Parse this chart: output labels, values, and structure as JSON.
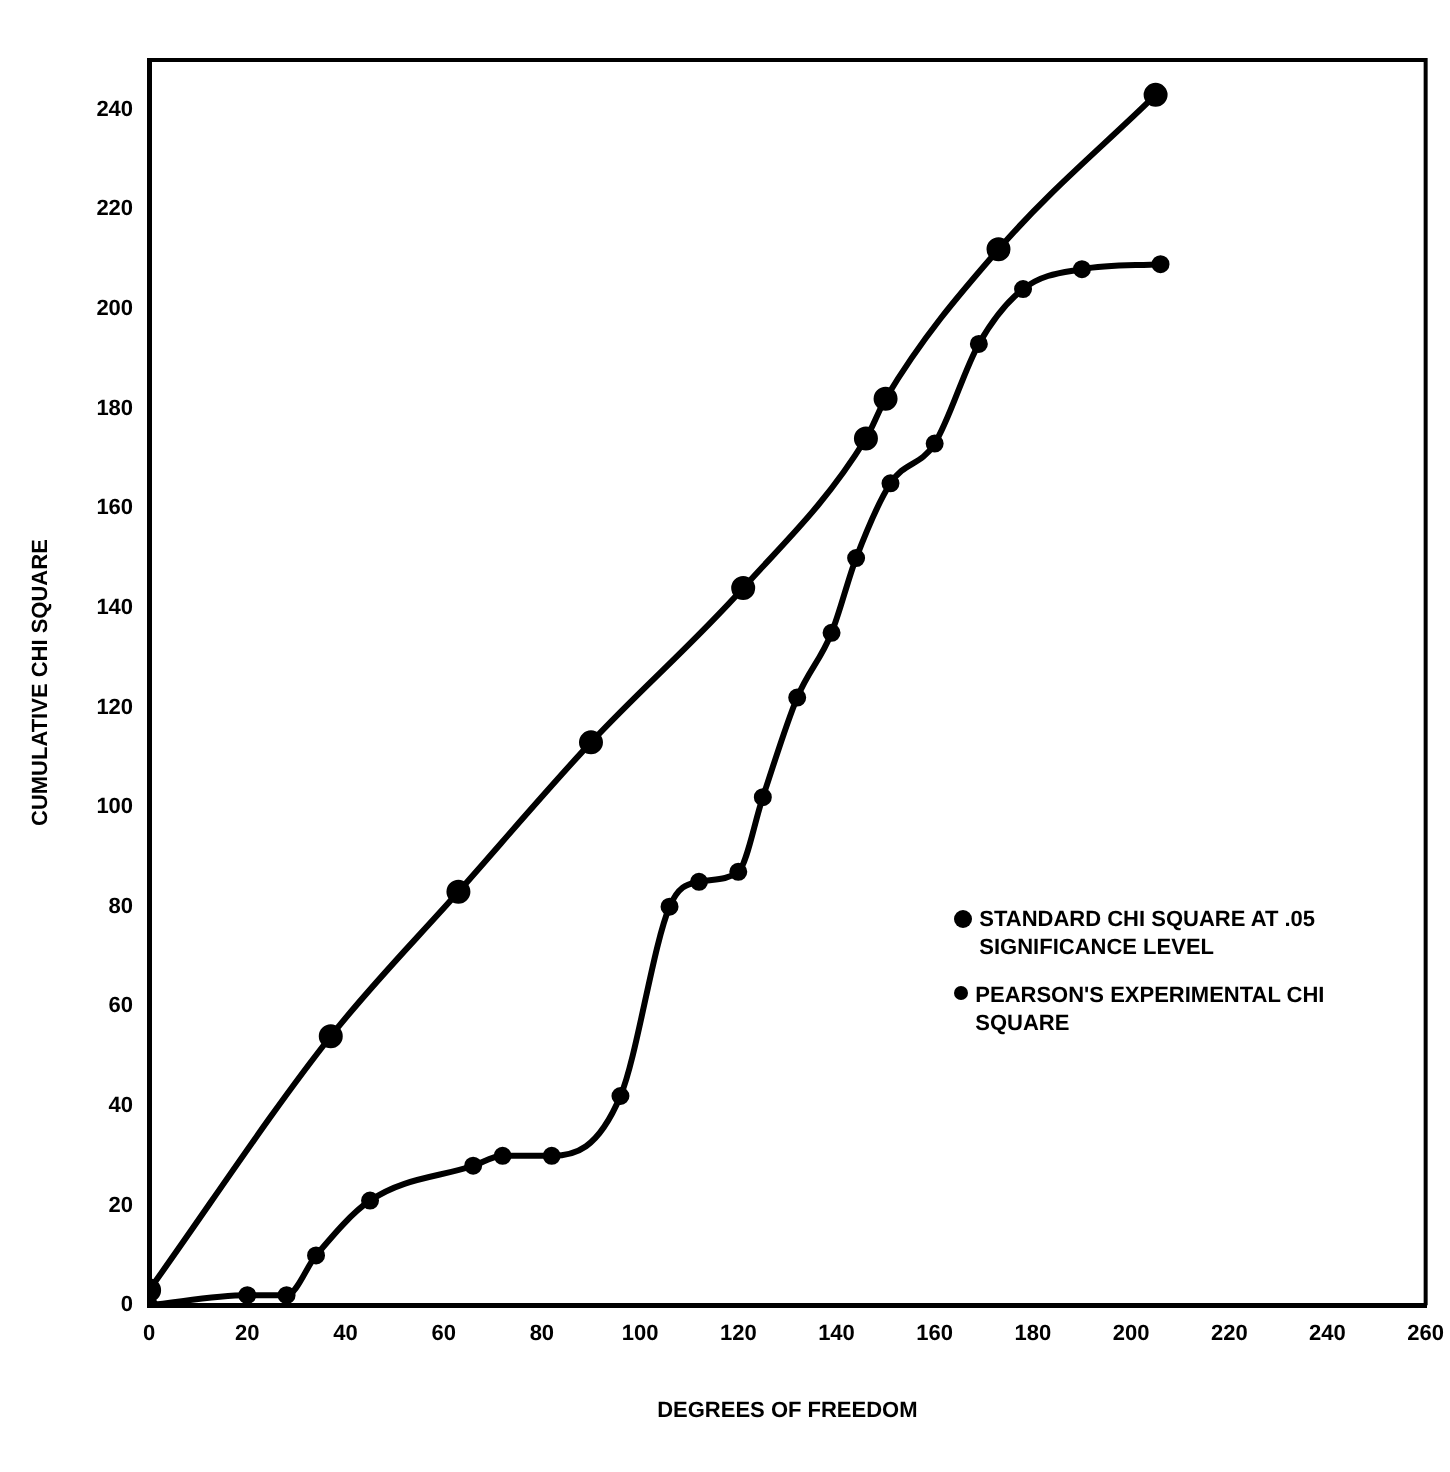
{
  "chart_data": {
    "type": "line",
    "xlabel": "DEGREES OF FREEDOM",
    "ylabel": "CUMULATIVE CHI SQUARE",
    "xlim": [
      0,
      260
    ],
    "xticks": [
      0,
      20,
      40,
      60,
      80,
      100,
      120,
      140,
      160,
      180,
      200,
      220,
      240,
      260
    ],
    "ylim": [
      0,
      250
    ],
    "yticks": [
      0,
      20,
      40,
      60,
      80,
      100,
      120,
      140,
      160,
      180,
      200,
      220,
      240
    ],
    "grid": false,
    "legend": "right",
    "marker": "circle",
    "line_style": "solid",
    "series": [
      {
        "name": "STANDARD CHI SQUARE AT .05 SIGNIFICANCE LEVEL",
        "color": "#000000",
        "x": [
          0,
          37,
          63,
          90,
          121,
          146,
          150,
          173,
          205
        ],
        "values": [
          3,
          54,
          83,
          113,
          144,
          174,
          182,
          212,
          243
        ]
      },
      {
        "name": "PEARSON'S EXPERIMENTAL CHI SQUARE",
        "color": "#000000",
        "x": [
          0,
          20,
          28,
          34,
          45,
          66,
          72,
          82,
          96,
          106,
          112,
          120,
          125,
          132,
          139,
          144,
          151,
          160,
          169,
          178,
          190,
          206
        ],
        "values": [
          0,
          2,
          2,
          10,
          21,
          28,
          30,
          30,
          42,
          80,
          85,
          87,
          102,
          122,
          135,
          150,
          165,
          173,
          193,
          204,
          208,
          209
        ]
      }
    ]
  }
}
